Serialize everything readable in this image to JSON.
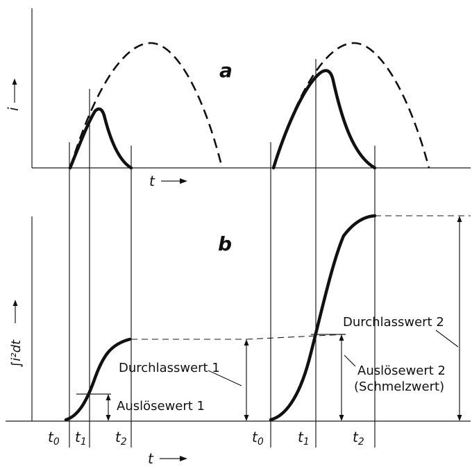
{
  "panel_a": {
    "label": "a",
    "y_axis": "i",
    "x_axis": "t"
  },
  "panel_b": {
    "label": "b",
    "y_axis": "∫i²dt",
    "x_axis": "t"
  },
  "time_marks": {
    "t0": "t",
    "t0_sub": "0",
    "t1": "t",
    "t1_sub": "1",
    "t2": "t",
    "t2_sub": "2"
  },
  "annotations": {
    "durchlasswert_1": "Durchlasswert 1",
    "auslosewert_1": "Auslösewert 1",
    "durchlasswert_2": "Durchlasswert 2",
    "auslosewert_2": "Auslösewert 2",
    "schmelzwert": "(Schmelzwert)"
  }
}
